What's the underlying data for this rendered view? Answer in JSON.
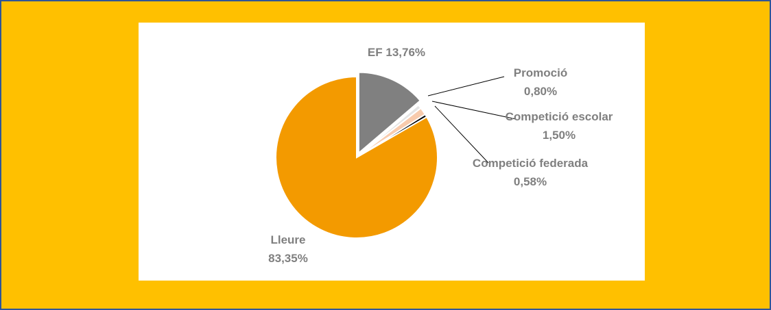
{
  "chart_data": {
    "type": "pie",
    "categories": [
      "EF",
      "Promoció",
      "Competició escolar",
      "Competició federada",
      "Lleure"
    ],
    "values": [
      13.76,
      0.8,
      1.5,
      0.58,
      83.35
    ],
    "value_labels": [
      "13,76%",
      "0,80%",
      "1,50%",
      "0,58%",
      "83,35%"
    ],
    "colors": [
      "#808080",
      "#e4e4e4",
      "#f8cbad",
      "#000000",
      "#f39a00"
    ]
  }
}
